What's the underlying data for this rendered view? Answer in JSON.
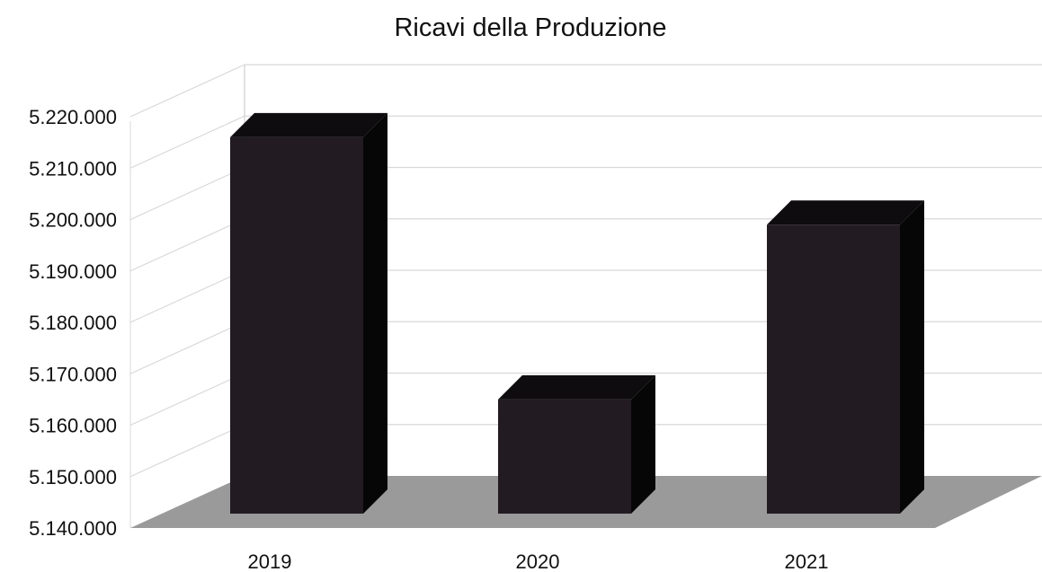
{
  "chart_data": {
    "type": "bar",
    "title": "Ricavi della Produzione",
    "categories": [
      "2019",
      "2020",
      "2021"
    ],
    "values": [
      5216000,
      5165000,
      5199000
    ],
    "y_ticks": [
      "5.140.000",
      "5.150.000",
      "5.160.000",
      "5.170.000",
      "5.180.000",
      "5.190.000",
      "5.200.000",
      "5.210.000",
      "5.220.000"
    ],
    "ylim": [
      5140000,
      5220000
    ],
    "xlabel": "",
    "ylabel": "",
    "grid": true,
    "legend": "none",
    "three_d": true,
    "colors": {
      "bar_front": "#221c22",
      "bar_side": "#070607",
      "bar_top": "#0e0c0e",
      "floor": "#9a9a9a",
      "grid": "#d8d8d8"
    }
  }
}
